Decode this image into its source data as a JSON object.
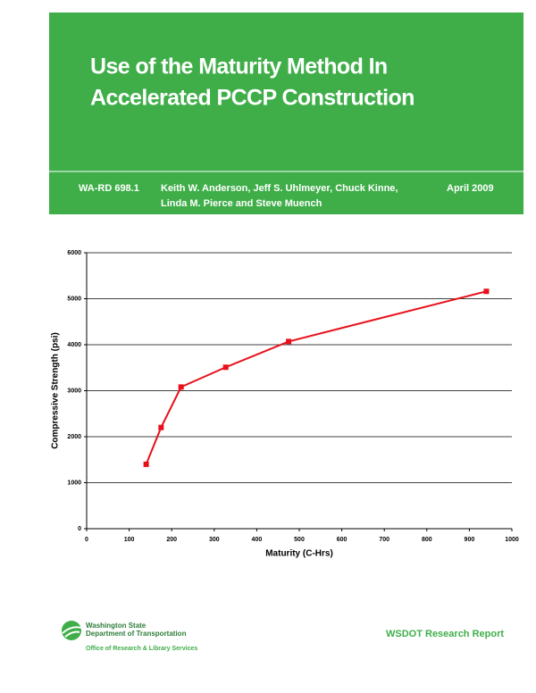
{
  "header": {
    "title_lines": [
      "Use of the Maturity Method In",
      "Accelerated PCCP Construction"
    ],
    "report_number": "WA-RD 698.1",
    "authors_lines": [
      "Keith W. Anderson, Jeff S. Uhlmeyer, Chuck Kinne,",
      "Linda M. Pierce  and Steve Muench"
    ],
    "date": "April 2009"
  },
  "chart_data": {
    "type": "line",
    "x_label": "Maturity (C-Hrs)",
    "y_label": "Compressive Strength (psi)",
    "series": [
      {
        "color": "#e8101a",
        "x": [
          140,
          175,
          222,
          327,
          475,
          940
        ],
        "values": [
          1400,
          2200,
          3080,
          3510,
          4070,
          5160
        ]
      }
    ],
    "xlim": [
      0,
      1000
    ],
    "xticks": [
      0,
      100,
      200,
      300,
      400,
      500,
      600,
      700,
      800,
      900,
      1000
    ],
    "ylim": [
      0,
      6000
    ],
    "yticks": [
      0,
      1000,
      2000,
      3000,
      4000,
      5000,
      6000
    ],
    "grid": true
  },
  "footer": {
    "agency_lines": [
      "Washington State",
      "Department of Transportation"
    ],
    "office": "Office of Research & Library Services",
    "series_title": "WSDOT Research Report"
  }
}
